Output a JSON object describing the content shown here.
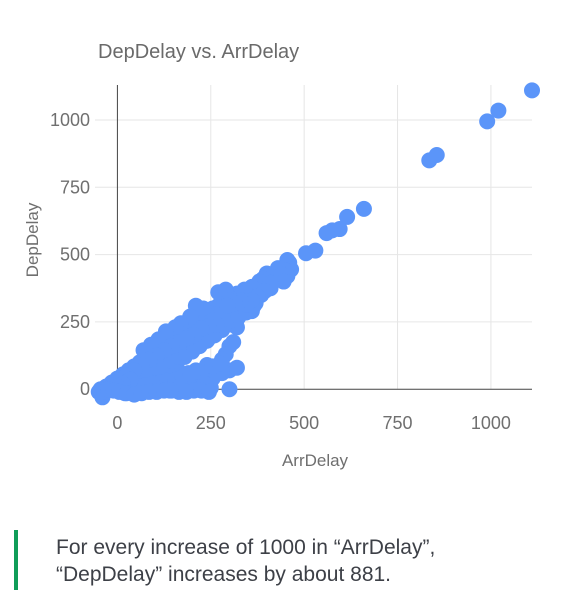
{
  "insight": {
    "text": "For every increase of 1000 in “ArrDelay”, “DepDelay” increases by about 881.",
    "accent_color": "#0f9d58"
  },
  "chart_data": {
    "type": "scatter",
    "title": "DepDelay vs. ArrDelay",
    "xlabel": "ArrDelay",
    "ylabel": "DepDelay",
    "xlim": [
      -60,
      1110
    ],
    "ylim": [
      -40,
      1130
    ],
    "x_ticks": [
      0,
      250,
      500,
      750,
      1000
    ],
    "x_tick_labels": [
      "0",
      "250",
      "500",
      "750",
      "1000"
    ],
    "y_ticks": [
      0,
      250,
      500,
      750,
      1000
    ],
    "y_tick_labels": [
      "0",
      "250",
      "500",
      "750",
      "1000"
    ],
    "grid": true,
    "point_color": "#5b95f9",
    "series": [
      {
        "values": [
          [
            1110,
            1110
          ],
          [
            1020,
            1035
          ],
          [
            990,
            995
          ],
          [
            855,
            870
          ],
          [
            835,
            850
          ],
          [
            660,
            670
          ],
          [
            615,
            640
          ],
          [
            595,
            595
          ],
          [
            575,
            590
          ],
          [
            560,
            580
          ],
          [
            530,
            515
          ],
          [
            505,
            505
          ],
          [
            460,
            470
          ],
          [
            455,
            480
          ],
          [
            465,
            445
          ],
          [
            455,
            420
          ],
          [
            450,
            440
          ],
          [
            430,
            450
          ],
          [
            400,
            430
          ],
          [
            390,
            410
          ],
          [
            380,
            400
          ],
          [
            360,
            380
          ],
          [
            340,
            370
          ],
          [
            320,
            355
          ],
          [
            300,
            340
          ],
          [
            285,
            330
          ],
          [
            270,
            310
          ],
          [
            255,
            300
          ],
          [
            240,
            280
          ],
          [
            225,
            265
          ],
          [
            210,
            250
          ],
          [
            195,
            235
          ],
          [
            180,
            220
          ],
          [
            165,
            205
          ],
          [
            150,
            190
          ],
          [
            135,
            175
          ],
          [
            120,
            160
          ],
          [
            105,
            145
          ],
          [
            90,
            130
          ],
          [
            75,
            115
          ],
          [
            60,
            100
          ],
          [
            45,
            85
          ],
          [
            30,
            70
          ],
          [
            15,
            55
          ],
          [
            0,
            40
          ],
          [
            -15,
            25
          ],
          [
            -30,
            10
          ],
          [
            -45,
            0
          ],
          [
            -50,
            -10
          ],
          [
            -40,
            -30
          ],
          [
            350,
            330
          ],
          [
            330,
            300
          ],
          [
            310,
            280
          ],
          [
            290,
            265
          ],
          [
            275,
            250
          ],
          [
            260,
            235
          ],
          [
            245,
            220
          ],
          [
            230,
            205
          ],
          [
            215,
            190
          ],
          [
            200,
            175
          ],
          [
            185,
            160
          ],
          [
            170,
            145
          ],
          [
            155,
            130
          ],
          [
            140,
            115
          ],
          [
            125,
            100
          ],
          [
            110,
            85
          ],
          [
            95,
            70
          ],
          [
            80,
            55
          ],
          [
            65,
            40
          ],
          [
            50,
            25
          ],
          [
            35,
            10
          ],
          [
            20,
            0
          ],
          [
            320,
            260
          ],
          [
            300,
            240
          ],
          [
            280,
            220
          ],
          [
            260,
            200
          ],
          [
            240,
            180
          ],
          [
            220,
            160
          ],
          [
            200,
            140
          ],
          [
            180,
            120
          ],
          [
            160,
            100
          ],
          [
            140,
            80
          ],
          [
            120,
            60
          ],
          [
            100,
            40
          ],
          [
            80,
            20
          ],
          [
            60,
            5
          ],
          [
            40,
            -5
          ],
          [
            20,
            -15
          ],
          [
            270,
            360
          ],
          [
            290,
            370
          ],
          [
            300,
            330
          ],
          [
            310,
            300
          ],
          [
            250,
            280
          ],
          [
            230,
            300
          ],
          [
            210,
            310
          ],
          [
            195,
            270
          ],
          [
            170,
            245
          ],
          [
            155,
            230
          ],
          [
            130,
            215
          ],
          [
            110,
            185
          ],
          [
            90,
            165
          ],
          [
            70,
            145
          ],
          [
            340,
            300
          ],
          [
            370,
            320
          ],
          [
            360,
            290
          ],
          [
            275,
            270
          ],
          [
            320,
            230
          ],
          [
            310,
            175
          ],
          [
            300,
            160
          ],
          [
            290,
            130
          ],
          [
            280,
            110
          ],
          [
            300,
            70
          ],
          [
            250,
            60
          ],
          [
            225,
            45
          ],
          [
            200,
            40
          ],
          [
            170,
            35
          ],
          [
            150,
            20
          ],
          [
            130,
            15
          ],
          [
            110,
            5
          ],
          [
            90,
            0
          ],
          [
            70,
            0
          ],
          [
            50,
            -5
          ],
          [
            300,
            0
          ],
          [
            250,
            5
          ],
          [
            210,
            0
          ],
          [
            180,
            5
          ],
          [
            160,
            0
          ],
          [
            140,
            -5
          ],
          [
            240,
            90
          ],
          [
            210,
            70
          ],
          [
            190,
            60
          ],
          [
            170,
            60
          ],
          [
            150,
            55
          ],
          [
            130,
            50
          ],
          [
            110,
            45
          ],
          [
            90,
            35
          ],
          [
            70,
            30
          ],
          [
            50,
            20
          ],
          [
            30,
            15
          ],
          [
            10,
            5
          ],
          [
            -5,
            0
          ],
          [
            -20,
            5
          ],
          [
            -35,
            -10
          ],
          [
            320,
            80
          ],
          [
            280,
            60
          ],
          [
            255,
            40
          ],
          [
            235,
            20
          ],
          [
            190,
            20
          ],
          [
            120,
            120
          ],
          [
            100,
            105
          ],
          [
            80,
            90
          ],
          [
            60,
            75
          ],
          [
            40,
            60
          ],
          [
            20,
            45
          ],
          [
            130,
            140
          ],
          [
            150,
            150
          ],
          [
            170,
            170
          ],
          [
            185,
            185
          ],
          [
            200,
            200
          ],
          [
            215,
            215
          ],
          [
            230,
            230
          ],
          [
            250,
            250
          ],
          [
            265,
            265
          ],
          [
            280,
            290
          ],
          [
            25,
            30
          ],
          [
            45,
            40
          ],
          [
            65,
            55
          ],
          [
            85,
            70
          ],
          [
            105,
            80
          ],
          [
            125,
            90
          ],
          [
            145,
            105
          ],
          [
            165,
            120
          ],
          [
            185,
            135
          ],
          [
            205,
            150
          ],
          [
            225,
            170
          ],
          [
            245,
            190
          ],
          [
            265,
            210
          ],
          [
            285,
            235
          ],
          [
            305,
            255
          ],
          [
            325,
            270
          ],
          [
            345,
            285
          ],
          [
            365,
            310
          ],
          [
            385,
            350
          ],
          [
            410,
            375
          ],
          [
            420,
            415
          ],
          [
            440,
            425
          ],
          [
            445,
            400
          ],
          [
            410,
            395
          ],
          [
            395,
            365
          ],
          [
            375,
            345
          ],
          [
            360,
            330
          ],
          [
            345,
            315
          ],
          [
            330,
            330
          ],
          [
            315,
            320
          ],
          [
            295,
            310
          ],
          [
            265,
            240
          ],
          [
            245,
            235
          ],
          [
            225,
            225
          ],
          [
            205,
            200
          ],
          [
            185,
            190
          ],
          [
            165,
            175
          ],
          [
            145,
            160
          ],
          [
            125,
            145
          ],
          [
            105,
            125
          ],
          [
            85,
            110
          ],
          [
            65,
            90
          ],
          [
            45,
            70
          ],
          [
            25,
            50
          ],
          [
            5,
            30
          ],
          [
            -10,
            15
          ],
          [
            -25,
            0
          ],
          [
            55,
            10
          ],
          [
            75,
            15
          ],
          [
            95,
            20
          ],
          [
            115,
            25
          ],
          [
            135,
            30
          ],
          [
            155,
            35
          ],
          [
            175,
            45
          ],
          [
            195,
            55
          ],
          [
            215,
            65
          ],
          [
            235,
            75
          ],
          [
            255,
            85
          ],
          [
            275,
            95
          ],
          [
            35,
            35
          ],
          [
            15,
            20
          ],
          [
            0,
            10
          ],
          [
            -10,
            -5
          ],
          [
            5,
            -10
          ],
          [
            25,
            -15
          ],
          [
            45,
            -20
          ],
          [
            65,
            -15
          ],
          [
            85,
            -10
          ],
          [
            105,
            -10
          ],
          [
            125,
            -5
          ],
          [
            145,
            -5
          ],
          [
            165,
            -10
          ],
          [
            185,
            -10
          ],
          [
            205,
            -5
          ],
          [
            225,
            -5
          ],
          [
            245,
            -10
          ]
        ]
      }
    ]
  }
}
